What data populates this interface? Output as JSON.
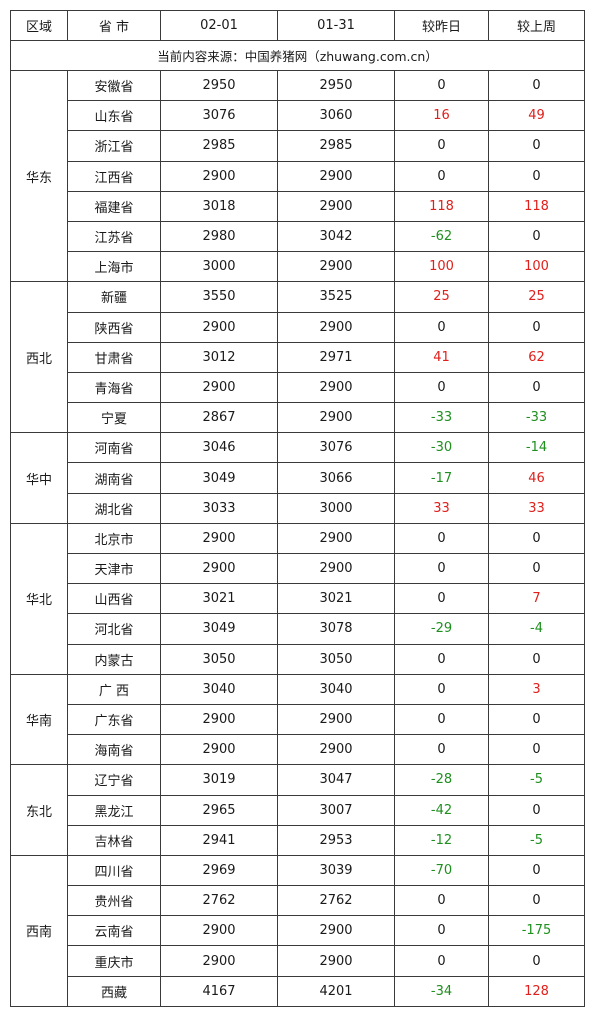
{
  "headers": [
    "区域",
    "省 市",
    "02-01",
    "01-31",
    "较昨日",
    "较上周"
  ],
  "source_note": "当前内容来源：中国养猪网（zhuwang.com.cn）",
  "regions": [
    {
      "name": "华东",
      "rows": [
        {
          "province": "安徽省",
          "d0201": "2950",
          "d0131": "2950",
          "vs_yesterday": "0",
          "vs_last_week": "0"
        },
        {
          "province": "山东省",
          "d0201": "3076",
          "d0131": "3060",
          "vs_yesterday": "16",
          "vs_last_week": "49"
        },
        {
          "province": "浙江省",
          "d0201": "2985",
          "d0131": "2985",
          "vs_yesterday": "0",
          "vs_last_week": "0"
        },
        {
          "province": "江西省",
          "d0201": "2900",
          "d0131": "2900",
          "vs_yesterday": "0",
          "vs_last_week": "0"
        },
        {
          "province": "福建省",
          "d0201": "3018",
          "d0131": "2900",
          "vs_yesterday": "118",
          "vs_last_week": "118"
        },
        {
          "province": "江苏省",
          "d0201": "2980",
          "d0131": "3042",
          "vs_yesterday": "-62",
          "vs_last_week": "0"
        },
        {
          "province": "上海市",
          "d0201": "3000",
          "d0131": "2900",
          "vs_yesterday": "100",
          "vs_last_week": "100"
        }
      ]
    },
    {
      "name": "西北",
      "rows": [
        {
          "province": "新疆",
          "d0201": "3550",
          "d0131": "3525",
          "vs_yesterday": "25",
          "vs_last_week": "25"
        },
        {
          "province": "陕西省",
          "d0201": "2900",
          "d0131": "2900",
          "vs_yesterday": "0",
          "vs_last_week": "0"
        },
        {
          "province": "甘肃省",
          "d0201": "3012",
          "d0131": "2971",
          "vs_yesterday": "41",
          "vs_last_week": "62"
        },
        {
          "province": "青海省",
          "d0201": "2900",
          "d0131": "2900",
          "vs_yesterday": "0",
          "vs_last_week": "0"
        },
        {
          "province": "宁夏",
          "d0201": "2867",
          "d0131": "2900",
          "vs_yesterday": "-33",
          "vs_last_week": "-33"
        }
      ]
    },
    {
      "name": "华中",
      "rows": [
        {
          "province": "河南省",
          "d0201": "3046",
          "d0131": "3076",
          "vs_yesterday": "-30",
          "vs_last_week": "-14"
        },
        {
          "province": "湖南省",
          "d0201": "3049",
          "d0131": "3066",
          "vs_yesterday": "-17",
          "vs_last_week": "46"
        },
        {
          "province": "湖北省",
          "d0201": "3033",
          "d0131": "3000",
          "vs_yesterday": "33",
          "vs_last_week": "33"
        }
      ]
    },
    {
      "name": "华北",
      "rows": [
        {
          "province": "北京市",
          "d0201": "2900",
          "d0131": "2900",
          "vs_yesterday": "0",
          "vs_last_week": "0"
        },
        {
          "province": "天津市",
          "d0201": "2900",
          "d0131": "2900",
          "vs_yesterday": "0",
          "vs_last_week": "0"
        },
        {
          "province": "山西省",
          "d0201": "3021",
          "d0131": "3021",
          "vs_yesterday": "0",
          "vs_last_week": "7"
        },
        {
          "province": "河北省",
          "d0201": "3049",
          "d0131": "3078",
          "vs_yesterday": "-29",
          "vs_last_week": "-4"
        },
        {
          "province": "内蒙古",
          "d0201": "3050",
          "d0131": "3050",
          "vs_yesterday": "0",
          "vs_last_week": "0"
        }
      ]
    },
    {
      "name": "华南",
      "rows": [
        {
          "province": "广 西",
          "d0201": "3040",
          "d0131": "3040",
          "vs_yesterday": "0",
          "vs_last_week": "3"
        },
        {
          "province": "广东省",
          "d0201": "2900",
          "d0131": "2900",
          "vs_yesterday": "0",
          "vs_last_week": "0"
        },
        {
          "province": "海南省",
          "d0201": "2900",
          "d0131": "2900",
          "vs_yesterday": "0",
          "vs_last_week": "0"
        }
      ]
    },
    {
      "name": "东北",
      "rows": [
        {
          "province": "辽宁省",
          "d0201": "3019",
          "d0131": "3047",
          "vs_yesterday": "-28",
          "vs_last_week": "-5"
        },
        {
          "province": "黑龙江",
          "d0201": "2965",
          "d0131": "3007",
          "vs_yesterday": "-42",
          "vs_last_week": "0"
        },
        {
          "province": "吉林省",
          "d0201": "2941",
          "d0131": "2953",
          "vs_yesterday": "-12",
          "vs_last_week": "-5"
        }
      ]
    },
    {
      "name": "西南",
      "rows": [
        {
          "province": "四川省",
          "d0201": "2969",
          "d0131": "3039",
          "vs_yesterday": "-70",
          "vs_last_week": "0"
        },
        {
          "province": "贵州省",
          "d0201": "2762",
          "d0131": "2762",
          "vs_yesterday": "0",
          "vs_last_week": "0"
        },
        {
          "province": "云南省",
          "d0201": "2900",
          "d0131": "2900",
          "vs_yesterday": "0",
          "vs_last_week": "-175"
        },
        {
          "province": "重庆市",
          "d0201": "2900",
          "d0131": "2900",
          "vs_yesterday": "0",
          "vs_last_week": "0"
        },
        {
          "province": "西藏",
          "d0201": "4167",
          "d0131": "4201",
          "vs_yesterday": "-34",
          "vs_last_week": "128"
        }
      ]
    }
  ],
  "colors": {
    "positive": "#e0201c",
    "negative": "#1f8f1f",
    "neutral": "#1a1a1a",
    "border": "#3a3a3a"
  }
}
